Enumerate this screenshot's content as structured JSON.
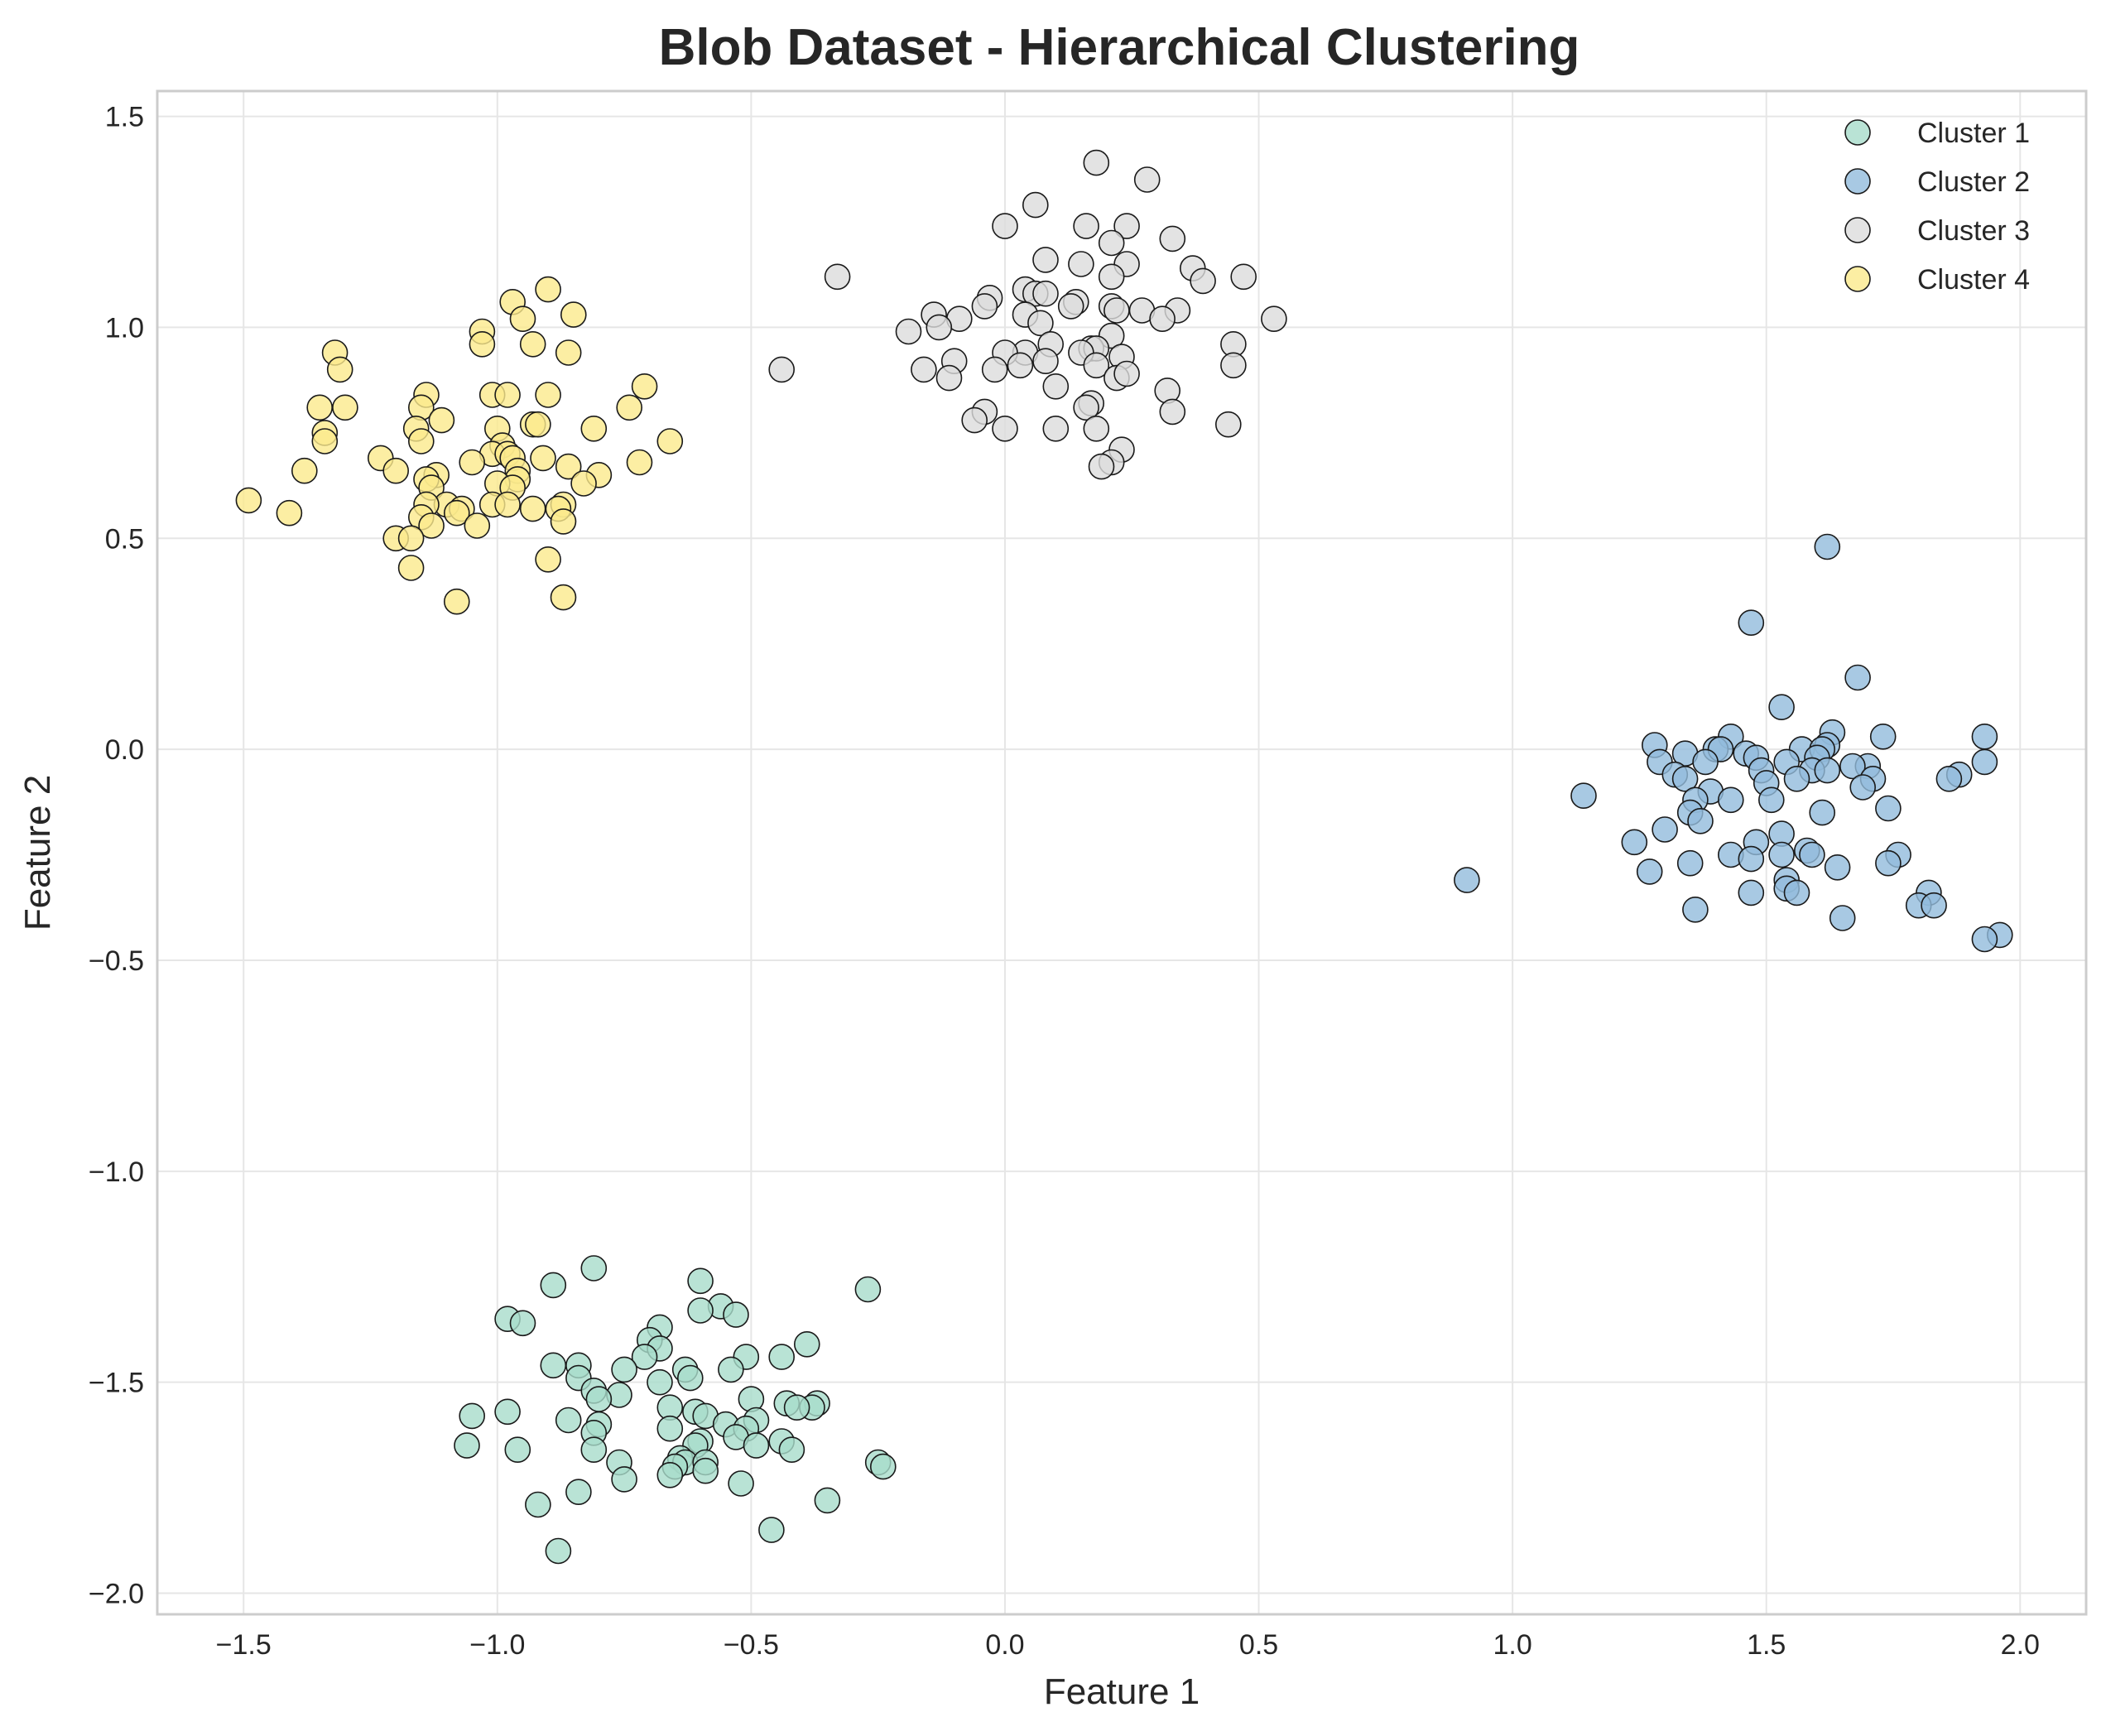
{
  "chart_data": {
    "type": "scatter",
    "title": "Blob Dataset - Hierarchical Clustering",
    "xlabel": "Feature 1",
    "ylabel": "Feature 2",
    "xlim": [
      -1.67,
      2.13
    ],
    "ylim": [
      -2.05,
      1.56
    ],
    "xticks": [
      -1.5,
      -1.0,
      -0.5,
      0.0,
      0.5,
      1.0,
      1.5,
      2.0
    ],
    "yticks": [
      -2.0,
      -1.5,
      -1.0,
      -0.5,
      0.0,
      0.5,
      1.0,
      1.5
    ],
    "xtick_labels": [
      "−1.5",
      "−1.0",
      "−0.5",
      "0.0",
      "0.5",
      "1.0",
      "1.5",
      "2.0"
    ],
    "ytick_labels": [
      "−2.0",
      "−1.5",
      "−1.0",
      "−0.5",
      "0.0",
      "0.5",
      "1.0",
      "1.5"
    ],
    "grid": true,
    "legend_position": "top-right",
    "series": [
      {
        "name": "Cluster 1",
        "color": "#a8dcca",
        "points": [
          [
            -0.81,
            -1.23
          ],
          [
            -0.89,
            -1.27
          ],
          [
            -0.6,
            -1.26
          ],
          [
            -0.27,
            -1.28
          ],
          [
            -0.56,
            -1.32
          ],
          [
            -0.6,
            -1.33
          ],
          [
            -0.53,
            -1.34
          ],
          [
            -0.98,
            -1.35
          ],
          [
            -0.95,
            -1.36
          ],
          [
            -0.68,
            -1.37
          ],
          [
            -0.7,
            -1.4
          ],
          [
            -0.68,
            -1.42
          ],
          [
            -0.39,
            -1.41
          ],
          [
            -0.71,
            -1.44
          ],
          [
            -0.51,
            -1.44
          ],
          [
            -0.44,
            -1.44
          ],
          [
            -0.89,
            -1.46
          ],
          [
            -0.84,
            -1.46
          ],
          [
            -0.75,
            -1.47
          ],
          [
            -0.54,
            -1.47
          ],
          [
            -0.63,
            -1.47
          ],
          [
            -0.62,
            -1.49
          ],
          [
            -0.84,
            -1.49
          ],
          [
            -0.68,
            -1.5
          ],
          [
            -0.81,
            -1.52
          ],
          [
            -0.76,
            -1.53
          ],
          [
            -0.8,
            -1.54
          ],
          [
            -0.5,
            -1.54
          ],
          [
            -0.37,
            -1.55
          ],
          [
            -0.43,
            -1.55
          ],
          [
            -0.38,
            -1.56
          ],
          [
            -0.41,
            -1.56
          ],
          [
            -0.66,
            -1.56
          ],
          [
            -0.61,
            -1.57
          ],
          [
            -0.59,
            -1.58
          ],
          [
            -1.05,
            -1.58
          ],
          [
            -0.98,
            -1.57
          ],
          [
            -0.86,
            -1.59
          ],
          [
            -0.8,
            -1.6
          ],
          [
            -0.55,
            -1.6
          ],
          [
            -0.49,
            -1.59
          ],
          [
            -0.51,
            -1.61
          ],
          [
            -0.66,
            -1.61
          ],
          [
            -0.81,
            -1.62
          ],
          [
            -0.53,
            -1.63
          ],
          [
            -0.6,
            -1.64
          ],
          [
            -0.44,
            -1.64
          ],
          [
            -0.61,
            -1.65
          ],
          [
            -1.06,
            -1.65
          ],
          [
            -0.49,
            -1.65
          ],
          [
            -0.42,
            -1.66
          ],
          [
            -0.96,
            -1.66
          ],
          [
            -0.81,
            -1.66
          ],
          [
            -0.64,
            -1.68
          ],
          [
            -0.63,
            -1.69
          ],
          [
            -0.25,
            -1.69
          ],
          [
            -0.24,
            -1.7
          ],
          [
            -0.76,
            -1.69
          ],
          [
            -0.59,
            -1.69
          ],
          [
            -0.65,
            -1.7
          ],
          [
            -0.59,
            -1.71
          ],
          [
            -0.66,
            -1.72
          ],
          [
            -0.75,
            -1.73
          ],
          [
            -0.52,
            -1.74
          ],
          [
            -0.84,
            -1.76
          ],
          [
            -0.35,
            -1.78
          ],
          [
            -0.92,
            -1.79
          ],
          [
            -0.46,
            -1.85
          ],
          [
            -0.88,
            -1.9
          ]
        ]
      },
      {
        "name": "Cluster 2",
        "color": "#92bbdc",
        "points": [
          [
            1.62,
            0.48
          ],
          [
            1.47,
            0.3
          ],
          [
            1.68,
            0.17
          ],
          [
            1.53,
            0.1
          ],
          [
            1.93,
            0.03
          ],
          [
            1.28,
            0.01
          ],
          [
            1.63,
            0.04
          ],
          [
            1.73,
            0.03
          ],
          [
            1.43,
            0.03
          ],
          [
            1.4,
            0.0
          ],
          [
            1.41,
            0.0
          ],
          [
            1.57,
            0.0
          ],
          [
            1.62,
            0.01
          ],
          [
            1.61,
            0.0
          ],
          [
            1.34,
            -0.01
          ],
          [
            1.46,
            -0.01
          ],
          [
            1.48,
            -0.02
          ],
          [
            1.6,
            -0.02
          ],
          [
            1.38,
            -0.03
          ],
          [
            1.29,
            -0.03
          ],
          [
            1.93,
            -0.03
          ],
          [
            1.7,
            -0.04
          ],
          [
            1.54,
            -0.03
          ],
          [
            1.67,
            -0.04
          ],
          [
            1.49,
            -0.05
          ],
          [
            1.59,
            -0.05
          ],
          [
            1.62,
            -0.05
          ],
          [
            1.32,
            -0.06
          ],
          [
            1.34,
            -0.07
          ],
          [
            1.88,
            -0.06
          ],
          [
            1.86,
            -0.07
          ],
          [
            1.71,
            -0.07
          ],
          [
            1.56,
            -0.07
          ],
          [
            1.5,
            -0.08
          ],
          [
            1.69,
            -0.09
          ],
          [
            1.39,
            -0.1
          ],
          [
            1.14,
            -0.11
          ],
          [
            1.51,
            -0.12
          ],
          [
            1.43,
            -0.12
          ],
          [
            1.36,
            -0.12
          ],
          [
            1.74,
            -0.14
          ],
          [
            1.35,
            -0.15
          ],
          [
            1.61,
            -0.15
          ],
          [
            1.37,
            -0.17
          ],
          [
            1.3,
            -0.19
          ],
          [
            1.53,
            -0.2
          ],
          [
            1.24,
            -0.22
          ],
          [
            1.48,
            -0.22
          ],
          [
            1.58,
            -0.24
          ],
          [
            1.43,
            -0.25
          ],
          [
            1.53,
            -0.25
          ],
          [
            1.59,
            -0.25
          ],
          [
            1.76,
            -0.25
          ],
          [
            1.47,
            -0.26
          ],
          [
            1.35,
            -0.27
          ],
          [
            1.74,
            -0.27
          ],
          [
            1.64,
            -0.28
          ],
          [
            1.27,
            -0.29
          ],
          [
            0.91,
            -0.31
          ],
          [
            1.54,
            -0.31
          ],
          [
            1.54,
            -0.33
          ],
          [
            1.56,
            -0.34
          ],
          [
            1.47,
            -0.34
          ],
          [
            1.82,
            -0.34
          ],
          [
            1.8,
            -0.37
          ],
          [
            1.83,
            -0.37
          ],
          [
            1.36,
            -0.38
          ],
          [
            1.65,
            -0.4
          ],
          [
            1.96,
            -0.44
          ],
          [
            1.93,
            -0.45
          ]
        ]
      },
      {
        "name": "Cluster 3",
        "color": "#dcdcdc",
        "points": [
          [
            0.18,
            1.39
          ],
          [
            0.28,
            1.35
          ],
          [
            0.06,
            1.29
          ],
          [
            0.0,
            1.24
          ],
          [
            0.16,
            1.24
          ],
          [
            0.24,
            1.24
          ],
          [
            0.33,
            1.21
          ],
          [
            0.21,
            1.2
          ],
          [
            0.08,
            1.16
          ],
          [
            0.15,
            1.15
          ],
          [
            0.24,
            1.15
          ],
          [
            0.37,
            1.14
          ],
          [
            -0.33,
            1.12
          ],
          [
            0.21,
            1.12
          ],
          [
            0.39,
            1.11
          ],
          [
            0.47,
            1.12
          ],
          [
            0.04,
            1.09
          ],
          [
            0.06,
            1.08
          ],
          [
            0.08,
            1.08
          ],
          [
            -0.03,
            1.07
          ],
          [
            0.14,
            1.06
          ],
          [
            -0.04,
            1.05
          ],
          [
            0.13,
            1.05
          ],
          [
            0.21,
            1.05
          ],
          [
            0.27,
            1.04
          ],
          [
            0.34,
            1.04
          ],
          [
            0.22,
            1.04
          ],
          [
            0.04,
            1.03
          ],
          [
            -0.14,
            1.03
          ],
          [
            -0.09,
            1.02
          ],
          [
            0.53,
            1.02
          ],
          [
            0.31,
            1.02
          ],
          [
            0.07,
            1.01
          ],
          [
            -0.13,
            1.0
          ],
          [
            -0.19,
            0.99
          ],
          [
            0.21,
            0.98
          ],
          [
            0.09,
            0.96
          ],
          [
            0.45,
            0.96
          ],
          [
            0.17,
            0.95
          ],
          [
            0.18,
            0.95
          ],
          [
            0.15,
            0.94
          ],
          [
            0.04,
            0.94
          ],
          [
            0.0,
            0.94
          ],
          [
            0.23,
            0.93
          ],
          [
            -0.1,
            0.92
          ],
          [
            0.08,
            0.92
          ],
          [
            0.18,
            0.91
          ],
          [
            0.03,
            0.91
          ],
          [
            0.45,
            0.91
          ],
          [
            -0.16,
            0.9
          ],
          [
            -0.02,
            0.9
          ],
          [
            0.22,
            0.88
          ],
          [
            0.24,
            0.89
          ],
          [
            -0.11,
            0.88
          ],
          [
            0.1,
            0.86
          ],
          [
            0.32,
            0.85
          ],
          [
            0.17,
            0.82
          ],
          [
            0.16,
            0.81
          ],
          [
            0.33,
            0.8
          ],
          [
            -0.04,
            0.8
          ],
          [
            -0.06,
            0.78
          ],
          [
            0.44,
            0.77
          ],
          [
            0.0,
            0.76
          ],
          [
            0.1,
            0.76
          ],
          [
            0.18,
            0.76
          ],
          [
            0.23,
            0.71
          ],
          [
            0.21,
            0.68
          ],
          [
            0.19,
            0.67
          ],
          [
            -0.44,
            0.9
          ]
        ]
      },
      {
        "name": "Cluster 4",
        "color": "#fbea8c",
        "points": [
          [
            -0.9,
            1.09
          ],
          [
            -0.97,
            1.06
          ],
          [
            -0.85,
            1.03
          ],
          [
            -0.95,
            1.02
          ],
          [
            -1.03,
            0.99
          ],
          [
            -1.03,
            0.96
          ],
          [
            -0.93,
            0.96
          ],
          [
            -1.32,
            0.94
          ],
          [
            -0.86,
            0.94
          ],
          [
            -1.31,
            0.9
          ],
          [
            -0.71,
            0.86
          ],
          [
            -1.01,
            0.84
          ],
          [
            -0.98,
            0.84
          ],
          [
            -0.9,
            0.84
          ],
          [
            -1.14,
            0.84
          ],
          [
            -1.15,
            0.81
          ],
          [
            -1.35,
            0.81
          ],
          [
            -1.3,
            0.81
          ],
          [
            -0.74,
            0.81
          ],
          [
            -1.11,
            0.78
          ],
          [
            -0.93,
            0.77
          ],
          [
            -0.81,
            0.76
          ],
          [
            -1.0,
            0.76
          ],
          [
            -0.92,
            0.77
          ],
          [
            -1.16,
            0.76
          ],
          [
            -1.34,
            0.75
          ],
          [
            -1.34,
            0.73
          ],
          [
            -1.15,
            0.73
          ],
          [
            -0.66,
            0.73
          ],
          [
            -0.99,
            0.72
          ],
          [
            -1.01,
            0.7
          ],
          [
            -0.98,
            0.7
          ],
          [
            -0.91,
            0.69
          ],
          [
            -1.23,
            0.69
          ],
          [
            -0.97,
            0.69
          ],
          [
            -1.05,
            0.68
          ],
          [
            -0.72,
            0.68
          ],
          [
            -0.86,
            0.67
          ],
          [
            -1.38,
            0.66
          ],
          [
            -1.2,
            0.66
          ],
          [
            -0.96,
            0.66
          ],
          [
            -1.12,
            0.65
          ],
          [
            -0.8,
            0.65
          ],
          [
            -1.14,
            0.64
          ],
          [
            -0.96,
            0.64
          ],
          [
            -0.83,
            0.63
          ],
          [
            -1.0,
            0.63
          ],
          [
            -1.13,
            0.62
          ],
          [
            -0.97,
            0.62
          ],
          [
            -1.49,
            0.59
          ],
          [
            -1.1,
            0.58
          ],
          [
            -0.87,
            0.58
          ],
          [
            -1.14,
            0.58
          ],
          [
            -1.01,
            0.58
          ],
          [
            -0.98,
            0.58
          ],
          [
            -0.88,
            0.57
          ],
          [
            -1.07,
            0.57
          ],
          [
            -0.93,
            0.57
          ],
          [
            -1.08,
            0.56
          ],
          [
            -1.41,
            0.56
          ],
          [
            -1.15,
            0.55
          ],
          [
            -1.13,
            0.53
          ],
          [
            -1.04,
            0.53
          ],
          [
            -0.87,
            0.54
          ],
          [
            -1.2,
            0.5
          ],
          [
            -1.17,
            0.5
          ],
          [
            -0.9,
            0.45
          ],
          [
            -1.17,
            0.43
          ],
          [
            -0.87,
            0.36
          ],
          [
            -1.08,
            0.35
          ]
        ]
      }
    ]
  }
}
